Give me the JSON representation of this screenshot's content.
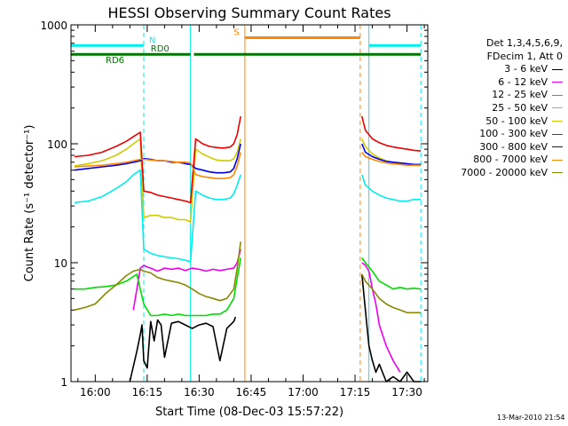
{
  "chart_data": {
    "type": "line",
    "title": "HESSI Observing Summary Count Rates",
    "xlabel": "Start Time (08-Dec-03 15:57:22)",
    "ylabel": "Count Rate (s⁻¹ detector⁻¹)",
    "y_scale": "log",
    "ylim": [
      1,
      1000
    ],
    "xlim_minutes_after_1600": [
      -7,
      96
    ],
    "x_tick_labels": [
      "16:00",
      "16:15",
      "16:30",
      "16:45",
      "17:00",
      "17:15",
      "17:30"
    ],
    "y_tick_labels": [
      "1",
      "10",
      "100",
      "1000"
    ],
    "legend_header": [
      "Det 1,3,4,5,6,9,",
      "FDecim 1, Att 0"
    ],
    "series": [
      {
        "name": "3 - 6 keV",
        "color": "#000000",
        "segments": [
          {
            "x": [
              10,
              12,
              13,
              13.5,
              14,
              15,
              16,
              17,
              18,
              19,
              20,
              22,
              24,
              26,
              28,
              30,
              32,
              34,
              36,
              38,
              40,
              40.5
            ],
            "y": [
              1,
              1.8,
              2.5,
              3.0,
              1.5,
              1.3,
              3.2,
              2.2,
              3.3,
              3.0,
              1.6,
              3.1,
              3.2,
              3.0,
              2.8,
              3.0,
              3.1,
              2.9,
              1.5,
              2.8,
              3.2,
              3.5
            ]
          },
          {
            "x": [
              77,
              78,
              79,
              80,
              81,
              82,
              84,
              86,
              88,
              90,
              92,
              94
            ],
            "y": [
              8.0,
              4.0,
              2.0,
              1.5,
              1.2,
              1.4,
              1.0,
              1.1,
              1.0,
              1.2,
              1.0,
              1.0
            ]
          }
        ]
      },
      {
        "name": "6 - 12 keV",
        "color": "#ee00ee",
        "segments": [
          {
            "x": [
              11,
              12,
              13,
              14,
              15,
              16,
              18,
              20,
              22,
              24,
              26,
              28,
              30,
              32,
              34,
              36,
              38,
              40,
              41,
              42
            ],
            "y": [
              4.0,
              6.0,
              9.0,
              9.5,
              9.2,
              9.0,
              8.5,
              9.0,
              8.8,
              9.0,
              8.6,
              9.0,
              8.8,
              8.5,
              8.8,
              8.6,
              8.8,
              9.0,
              10,
              13
            ]
          },
          {
            "x": [
              77,
              78,
              79,
              80,
              81,
              82,
              84,
              86,
              88
            ],
            "y": [
              10,
              9.5,
              8.5,
              6.0,
              4.5,
              3.0,
              2.0,
              1.5,
              1.2
            ]
          }
        ]
      },
      {
        "name": "12 - 25 keV",
        "color": "#00dd00",
        "segments": [
          {
            "x": [
              -6,
              -3,
              0,
              3,
              6,
              9,
              12,
              14,
              16,
              18,
              20,
              22,
              24,
              26,
              28,
              30,
              32,
              34,
              36,
              38,
              40,
              42
            ],
            "y": [
              6.0,
              6.0,
              6.2,
              6.3,
              6.5,
              7.0,
              8.0,
              4.5,
              3.6,
              3.6,
              3.7,
              3.6,
              3.7,
              3.6,
              3.6,
              3.6,
              3.6,
              3.7,
              3.7,
              4.0,
              5.0,
              11
            ]
          },
          {
            "x": [
              77,
              78,
              80,
              82,
              84,
              86,
              88,
              90,
              92,
              94
            ],
            "y": [
              11,
              10,
              8.5,
              7.0,
              6.5,
              6.0,
              6.2,
              6.0,
              6.1,
              6.0
            ]
          }
        ]
      },
      {
        "name": "25 - 50 keV",
        "color": "#00eeee",
        "segments": [
          {
            "x": [
              -6,
              -2,
              2,
              6,
              9,
              11,
              13,
              14,
              16,
              18,
              20,
              22,
              24,
              26,
              27.5,
              29,
              31,
              33,
              35,
              37,
              39,
              40,
              41,
              42
            ],
            "y": [
              32,
              33,
              36,
              42,
              48,
              55,
              60,
              13,
              12,
              11.5,
              11.2,
              11,
              10.8,
              10.5,
              10.2,
              40,
              37,
              35,
              34,
              34,
              35,
              38,
              45,
              55
            ]
          },
          {
            "x": [
              77,
              78,
              80,
              82,
              84,
              86,
              88,
              90,
              92,
              94
            ],
            "y": [
              55,
              45,
              40,
              37,
              35,
              34,
              33,
              33,
              34,
              34
            ]
          }
        ]
      },
      {
        "name": "50 - 100 keV",
        "color": "#cccc00",
        "segments": [
          {
            "x": [
              -6,
              -2,
              2,
              6,
              9,
              11,
              13,
              14,
              16,
              18,
              20,
              22,
              24,
              26,
              27.5,
              29,
              31,
              33,
              35,
              37,
              39,
              40,
              41,
              42
            ],
            "y": [
              65,
              68,
              72,
              80,
              90,
              100,
              110,
              24,
              25,
              25,
              24,
              24,
              23,
              23,
              22,
              90,
              82,
              77,
              73,
              72,
              72,
              75,
              85,
              110
            ]
          },
          {
            "x": [
              77,
              78,
              80,
              82,
              84,
              86,
              88,
              90,
              92,
              94
            ],
            "y": [
              110,
              95,
              82,
              76,
              72,
              70,
              68,
              67,
              66,
              66
            ]
          }
        ]
      },
      {
        "name": "100 - 300 keV",
        "color": "#ee0000",
        "segments": [
          {
            "x": [
              -6,
              -2,
              2,
              6,
              9,
              11,
              13,
              14,
              16,
              18,
              20,
              22,
              24,
              26,
              27.5,
              29,
              31,
              33,
              35,
              37,
              39,
              40,
              41,
              42
            ],
            "y": [
              78,
              80,
              85,
              95,
              105,
              115,
              125,
              40,
              39,
              37,
              36,
              35,
              34,
              33,
              32,
              110,
              100,
              95,
              93,
              92,
              94,
              100,
              120,
              170
            ]
          },
          {
            "x": [
              77,
              78,
              80,
              82,
              84,
              86,
              88,
              90,
              92,
              94
            ],
            "y": [
              170,
              130,
              110,
              102,
              97,
              94,
              92,
              90,
              88,
              87
            ]
          }
        ]
      },
      {
        "name": "300 - 800 keV",
        "color": "#0000ee",
        "segments": [
          {
            "x": [
              -6,
              -2,
              2,
              6,
              9,
              11,
              13,
              14,
              16,
              18,
              20,
              22,
              24,
              26,
              27.5,
              29,
              31,
              33,
              35,
              37,
              39,
              40,
              41,
              42
            ],
            "y": [
              60,
              62,
              64,
              66,
              68,
              70,
              72,
              75,
              74,
              72,
              72,
              70,
              70,
              68,
              67,
              62,
              60,
              58,
              57,
              57,
              58,
              62,
              75,
              100
            ]
          },
          {
            "x": [
              77,
              78,
              80,
              82,
              84,
              86,
              88,
              90,
              92,
              94
            ],
            "y": [
              100,
              85,
              78,
              74,
              71,
              70,
              69,
              68,
              67,
              67
            ]
          }
        ]
      },
      {
        "name": "800 - 7000 keV",
        "color": "#ff8800",
        "segments": [
          {
            "x": [
              -6,
              -2,
              2,
              6,
              9,
              11,
              13,
              14,
              16,
              18,
              20,
              22,
              24,
              26,
              27.5,
              29,
              31,
              33,
              35,
              37,
              39,
              40,
              41,
              42
            ],
            "y": [
              64,
              65,
              66,
              68,
              70,
              72,
              74,
              74,
              73,
              72,
              72,
              71,
              70,
              70,
              69,
              55,
              53,
              52,
              51,
              51,
              52,
              55,
              65,
              85
            ]
          },
          {
            "x": [
              77,
              78,
              80,
              82,
              84,
              86,
              88,
              90,
              92,
              94
            ],
            "y": [
              85,
              78,
              74,
              71,
              69,
              68,
              67,
              66,
              66,
              66
            ]
          }
        ]
      },
      {
        "name": "7000 - 20000 keV",
        "color": "#888800",
        "segments": [
          {
            "x": [
              -6,
              -3,
              0,
              3,
              6,
              9,
              11,
              13,
              14,
              16,
              18,
              20,
              22,
              24,
              26,
              28,
              30,
              32,
              34,
              36,
              38,
              40,
              41,
              42
            ],
            "y": [
              4.0,
              4.2,
              4.5,
              5.5,
              6.5,
              7.8,
              8.5,
              8.8,
              8.5,
              8.2,
              7.5,
              7.2,
              7.0,
              6.8,
              6.5,
              6.0,
              5.5,
              5.2,
              5.0,
              4.8,
              5.0,
              6.0,
              9.0,
              15
            ]
          },
          {
            "x": [
              77,
              78,
              80,
              82,
              84,
              86,
              88,
              90,
              92,
              94
            ],
            "y": [
              8.0,
              7.0,
              6.0,
              5.0,
              4.5,
              4.2,
              4.0,
              3.8,
              3.8,
              3.8
            ]
          }
        ]
      }
    ],
    "vertical_lines": [
      {
        "x": -7,
        "color": "#00eeee",
        "style": "solid"
      },
      {
        "x": 14,
        "color": "#00eeee",
        "style": "dashed"
      },
      {
        "x": 27.5,
        "color": "#00eeee",
        "style": "solid"
      },
      {
        "x": 43.2,
        "color": "#ff8800",
        "style": "solid"
      },
      {
        "x": 76.5,
        "color": "#ff8800",
        "style": "dashed"
      },
      {
        "x": 79,
        "color": "#00eeee",
        "style": "solid"
      },
      {
        "x": 94,
        "color": "#00eeee",
        "style": "dashed"
      }
    ],
    "flag_bars": [
      {
        "color": "#00eeee",
        "segments": [
          [
            -7,
            14
          ],
          [
            79,
            94
          ]
        ],
        "level": 670,
        "labels": [
          {
            "text": "N",
            "x": 15.5
          }
        ]
      },
      {
        "color": "#ff8800",
        "segments": [
          [
            43.2,
            76.5
          ]
        ],
        "level": 780,
        "labels": [
          {
            "text": "S",
            "x": 40
          }
        ]
      },
      {
        "color": "#007700",
        "segments": [
          [
            -7,
            27.5
          ],
          [
            28.5,
            94
          ]
        ],
        "level": 565,
        "labels": [
          {
            "text": "RD0",
            "x": 16
          },
          {
            "text": "RD6",
            "x": 3
          }
        ]
      }
    ]
  },
  "timestamp": "13-Mar-2010 21:54"
}
